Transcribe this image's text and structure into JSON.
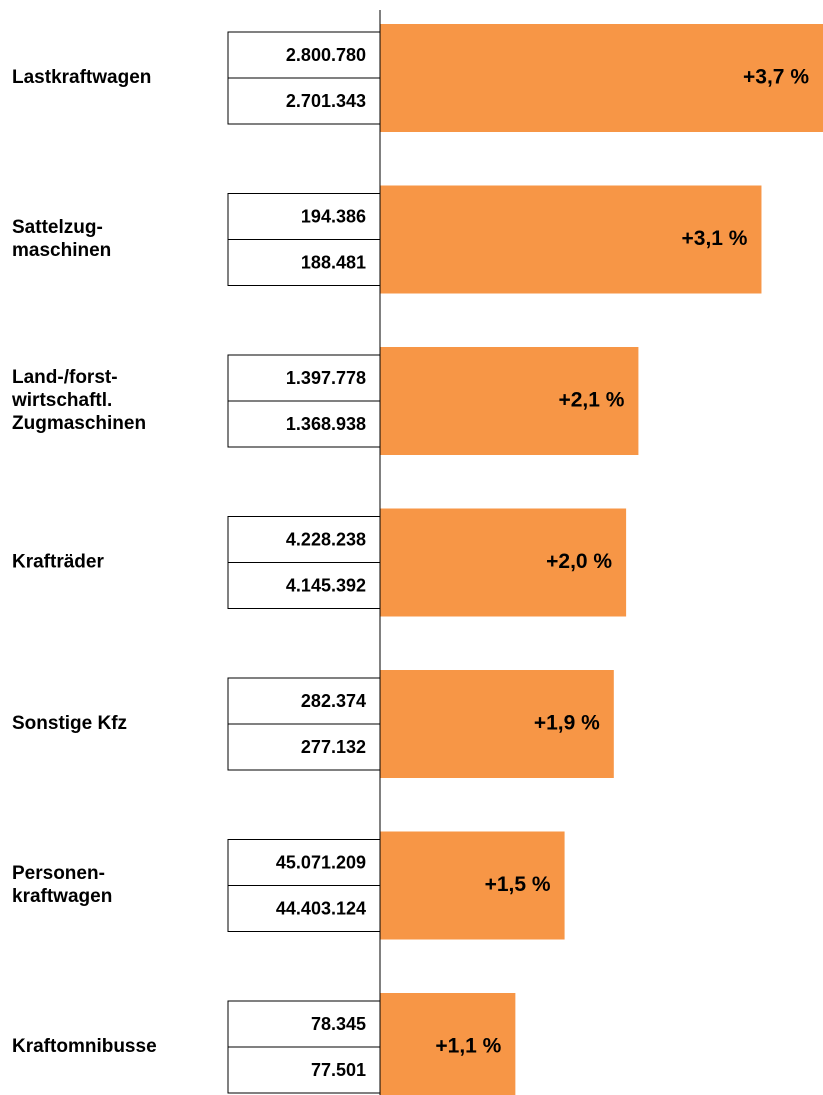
{
  "chart_data": {
    "type": "bar",
    "categories": [
      [
        "Lastkraftwagen"
      ],
      [
        "Sattelzug-",
        "maschinen"
      ],
      [
        "Land-/forst-",
        "wirtschaftl.",
        "Zugmaschinen"
      ],
      [
        "Krafträder"
      ],
      [
        "Sonstige Kfz"
      ],
      [
        "Personen-",
        "kraftwagen"
      ],
      [
        "Kraftomnibusse"
      ]
    ],
    "values": [
      3.7,
      3.1,
      2.1,
      2.0,
      1.9,
      1.5,
      1.1
    ],
    "value_labels": [
      "+3,7 %",
      "+3,1 %",
      "+2,1 %",
      "+2,0 %",
      "+1,9 %",
      "+1,5 %",
      "+1,1 %"
    ],
    "current": [
      "2.800.780",
      "194.386",
      "1.397.778",
      "4.228.238",
      "282.374",
      "45.071.209",
      "78.345"
    ],
    "previous": [
      "2.701.343",
      "188.481",
      "1.368.938",
      "4.145.392",
      "277.132",
      "44.403.124",
      "77.501"
    ],
    "color": "#f79646",
    "xlim": [
      0,
      3.6
    ]
  }
}
